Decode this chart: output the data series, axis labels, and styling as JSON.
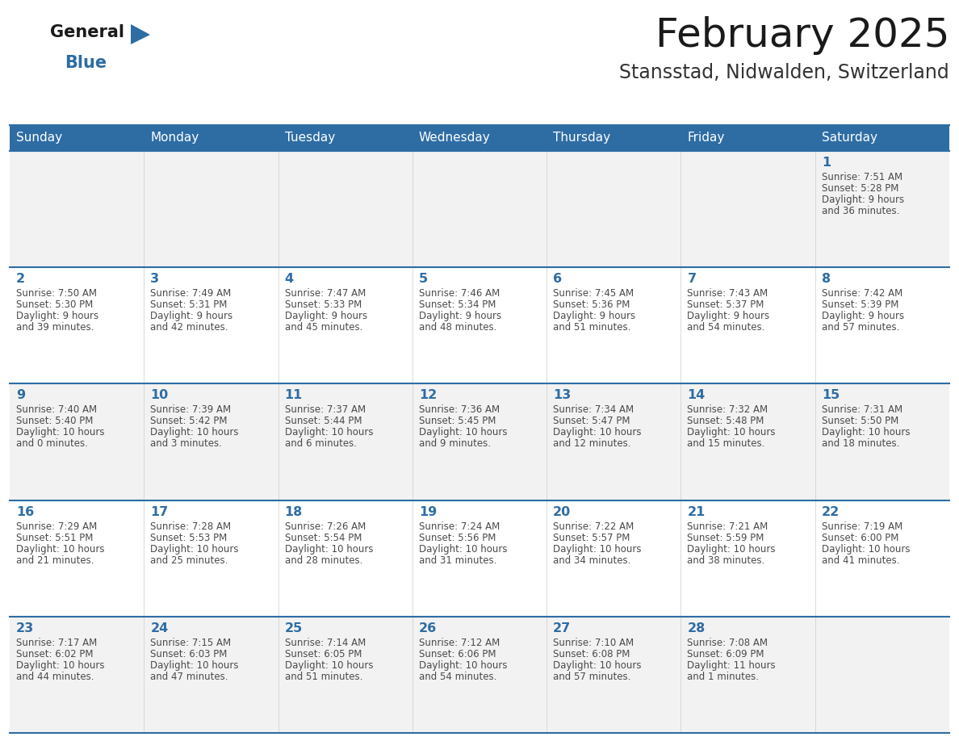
{
  "title": "February 2025",
  "subtitle": "Stansstad, Nidwalden, Switzerland",
  "days_of_week": [
    "Sunday",
    "Monday",
    "Tuesday",
    "Wednesday",
    "Thursday",
    "Friday",
    "Saturday"
  ],
  "header_bg": "#2E6DA4",
  "header_text": "#FFFFFF",
  "row0_bg": "#F2F2F2",
  "row1_bg": "#FFFFFF",
  "row2_bg": "#F2F2F2",
  "row3_bg": "#FFFFFF",
  "row4_bg": "#F2F2F2",
  "border_color": "#2E6DA4",
  "grid_color": "#CCCCCC",
  "day_number_color": "#2E6DA4",
  "cell_text_color": "#4A4A4A",
  "title_color": "#1A1A1A",
  "subtitle_color": "#333333",
  "logo_general_color": "#1A1A1A",
  "logo_blue_color": "#2E6DA4",
  "calendar_data": [
    {
      "day": 1,
      "col": 6,
      "row": 0,
      "sunrise": "7:51 AM",
      "sunset": "5:28 PM",
      "daylight_hours": 9,
      "daylight_minutes": 36
    },
    {
      "day": 2,
      "col": 0,
      "row": 1,
      "sunrise": "7:50 AM",
      "sunset": "5:30 PM",
      "daylight_hours": 9,
      "daylight_minutes": 39
    },
    {
      "day": 3,
      "col": 1,
      "row": 1,
      "sunrise": "7:49 AM",
      "sunset": "5:31 PM",
      "daylight_hours": 9,
      "daylight_minutes": 42
    },
    {
      "day": 4,
      "col": 2,
      "row": 1,
      "sunrise": "7:47 AM",
      "sunset": "5:33 PM",
      "daylight_hours": 9,
      "daylight_minutes": 45
    },
    {
      "day": 5,
      "col": 3,
      "row": 1,
      "sunrise": "7:46 AM",
      "sunset": "5:34 PM",
      "daylight_hours": 9,
      "daylight_minutes": 48
    },
    {
      "day": 6,
      "col": 4,
      "row": 1,
      "sunrise": "7:45 AM",
      "sunset": "5:36 PM",
      "daylight_hours": 9,
      "daylight_minutes": 51
    },
    {
      "day": 7,
      "col": 5,
      "row": 1,
      "sunrise": "7:43 AM",
      "sunset": "5:37 PM",
      "daylight_hours": 9,
      "daylight_minutes": 54
    },
    {
      "day": 8,
      "col": 6,
      "row": 1,
      "sunrise": "7:42 AM",
      "sunset": "5:39 PM",
      "daylight_hours": 9,
      "daylight_minutes": 57
    },
    {
      "day": 9,
      "col": 0,
      "row": 2,
      "sunrise": "7:40 AM",
      "sunset": "5:40 PM",
      "daylight_hours": 10,
      "daylight_minutes": 0
    },
    {
      "day": 10,
      "col": 1,
      "row": 2,
      "sunrise": "7:39 AM",
      "sunset": "5:42 PM",
      "daylight_hours": 10,
      "daylight_minutes": 3
    },
    {
      "day": 11,
      "col": 2,
      "row": 2,
      "sunrise": "7:37 AM",
      "sunset": "5:44 PM",
      "daylight_hours": 10,
      "daylight_minutes": 6
    },
    {
      "day": 12,
      "col": 3,
      "row": 2,
      "sunrise": "7:36 AM",
      "sunset": "5:45 PM",
      "daylight_hours": 10,
      "daylight_minutes": 9
    },
    {
      "day": 13,
      "col": 4,
      "row": 2,
      "sunrise": "7:34 AM",
      "sunset": "5:47 PM",
      "daylight_hours": 10,
      "daylight_minutes": 12
    },
    {
      "day": 14,
      "col": 5,
      "row": 2,
      "sunrise": "7:32 AM",
      "sunset": "5:48 PM",
      "daylight_hours": 10,
      "daylight_minutes": 15
    },
    {
      "day": 15,
      "col": 6,
      "row": 2,
      "sunrise": "7:31 AM",
      "sunset": "5:50 PM",
      "daylight_hours": 10,
      "daylight_minutes": 18
    },
    {
      "day": 16,
      "col": 0,
      "row": 3,
      "sunrise": "7:29 AM",
      "sunset": "5:51 PM",
      "daylight_hours": 10,
      "daylight_minutes": 21
    },
    {
      "day": 17,
      "col": 1,
      "row": 3,
      "sunrise": "7:28 AM",
      "sunset": "5:53 PM",
      "daylight_hours": 10,
      "daylight_minutes": 25
    },
    {
      "day": 18,
      "col": 2,
      "row": 3,
      "sunrise": "7:26 AM",
      "sunset": "5:54 PM",
      "daylight_hours": 10,
      "daylight_minutes": 28
    },
    {
      "day": 19,
      "col": 3,
      "row": 3,
      "sunrise": "7:24 AM",
      "sunset": "5:56 PM",
      "daylight_hours": 10,
      "daylight_minutes": 31
    },
    {
      "day": 20,
      "col": 4,
      "row": 3,
      "sunrise": "7:22 AM",
      "sunset": "5:57 PM",
      "daylight_hours": 10,
      "daylight_minutes": 34
    },
    {
      "day": 21,
      "col": 5,
      "row": 3,
      "sunrise": "7:21 AM",
      "sunset": "5:59 PM",
      "daylight_hours": 10,
      "daylight_minutes": 38
    },
    {
      "day": 22,
      "col": 6,
      "row": 3,
      "sunrise": "7:19 AM",
      "sunset": "6:00 PM",
      "daylight_hours": 10,
      "daylight_minutes": 41
    },
    {
      "day": 23,
      "col": 0,
      "row": 4,
      "sunrise": "7:17 AM",
      "sunset": "6:02 PM",
      "daylight_hours": 10,
      "daylight_minutes": 44
    },
    {
      "day": 24,
      "col": 1,
      "row": 4,
      "sunrise": "7:15 AM",
      "sunset": "6:03 PM",
      "daylight_hours": 10,
      "daylight_minutes": 47
    },
    {
      "day": 25,
      "col": 2,
      "row": 4,
      "sunrise": "7:14 AM",
      "sunset": "6:05 PM",
      "daylight_hours": 10,
      "daylight_minutes": 51
    },
    {
      "day": 26,
      "col": 3,
      "row": 4,
      "sunrise": "7:12 AM",
      "sunset": "6:06 PM",
      "daylight_hours": 10,
      "daylight_minutes": 54
    },
    {
      "day": 27,
      "col": 4,
      "row": 4,
      "sunrise": "7:10 AM",
      "sunset": "6:08 PM",
      "daylight_hours": 10,
      "daylight_minutes": 57
    },
    {
      "day": 28,
      "col": 5,
      "row": 4,
      "sunrise": "7:08 AM",
      "sunset": "6:09 PM",
      "daylight_hours": 11,
      "daylight_minutes": 1
    }
  ],
  "num_rows": 5,
  "num_cols": 7
}
